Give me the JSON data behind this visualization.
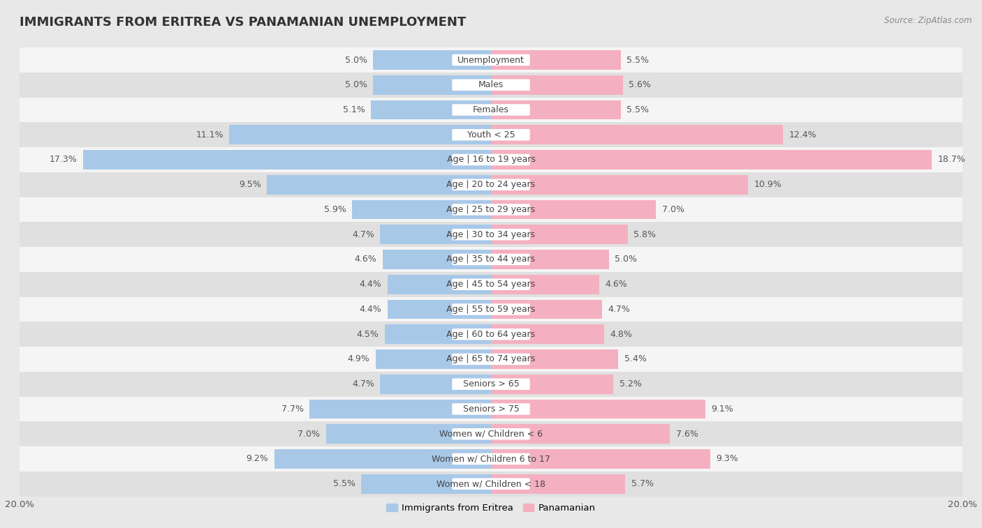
{
  "title": "IMMIGRANTS FROM ERITREA VS PANAMANIAN UNEMPLOYMENT",
  "source": "Source: ZipAtlas.com",
  "categories": [
    "Unemployment",
    "Males",
    "Females",
    "Youth < 25",
    "Age | 16 to 19 years",
    "Age | 20 to 24 years",
    "Age | 25 to 29 years",
    "Age | 30 to 34 years",
    "Age | 35 to 44 years",
    "Age | 45 to 54 years",
    "Age | 55 to 59 years",
    "Age | 60 to 64 years",
    "Age | 65 to 74 years",
    "Seniors > 65",
    "Seniors > 75",
    "Women w/ Children < 6",
    "Women w/ Children 6 to 17",
    "Women w/ Children < 18"
  ],
  "eritrea_values": [
    5.0,
    5.0,
    5.1,
    11.1,
    17.3,
    9.5,
    5.9,
    4.7,
    4.6,
    4.4,
    4.4,
    4.5,
    4.9,
    4.7,
    7.7,
    7.0,
    9.2,
    5.5
  ],
  "panamanian_values": [
    5.5,
    5.6,
    5.5,
    12.4,
    18.7,
    10.9,
    7.0,
    5.8,
    5.0,
    4.6,
    4.7,
    4.8,
    5.4,
    5.2,
    9.1,
    7.6,
    9.3,
    5.7
  ],
  "eritrea_color": "#a8c8e8",
  "panamanian_color": "#f4b0c0",
  "background_color": "#e8e8e8",
  "row_light_color": "#f5f5f5",
  "row_dark_color": "#e0e0e0",
  "label_bg_color": "#ffffff",
  "max_val": 20.0,
  "bar_height": 0.78,
  "label_fontsize": 9.0,
  "title_fontsize": 13,
  "legend_fontsize": 9.5,
  "value_fontsize": 9.0,
  "axis_tick_fontsize": 9.5
}
